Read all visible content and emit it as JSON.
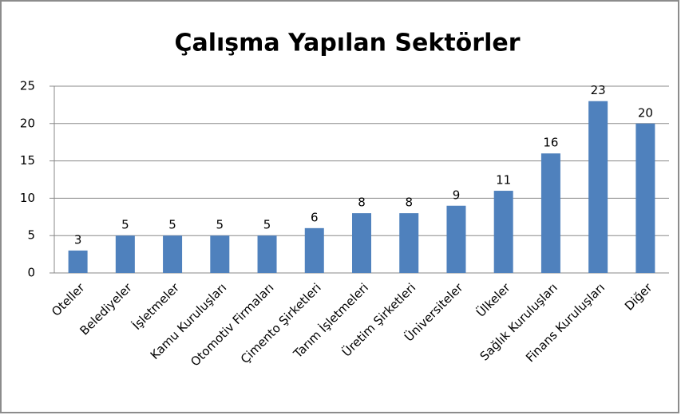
{
  "chart_data": {
    "type": "bar",
    "title": "Çalışma Yapılan Sektörler",
    "categories": [
      "Oteller",
      "Belediyeler",
      "İşletmeler",
      "Kamu Kuruluşları",
      "Otomotiv Firmaları",
      "Çimento Şirketleri",
      "Tarım İşletmeleri",
      "Üretim Şirketleri",
      "Üniversiteler",
      "Ülkeler",
      "Sağlık Kuruluşları",
      "Finans Kuruluşları",
      "Diğer"
    ],
    "values": [
      3,
      5,
      5,
      5,
      5,
      6,
      8,
      8,
      9,
      11,
      16,
      23,
      20
    ],
    "color": "#4f81bd",
    "ylim": [
      0,
      25
    ],
    "yticks": [
      0,
      5,
      10,
      15,
      20,
      25
    ],
    "grid": true
  }
}
